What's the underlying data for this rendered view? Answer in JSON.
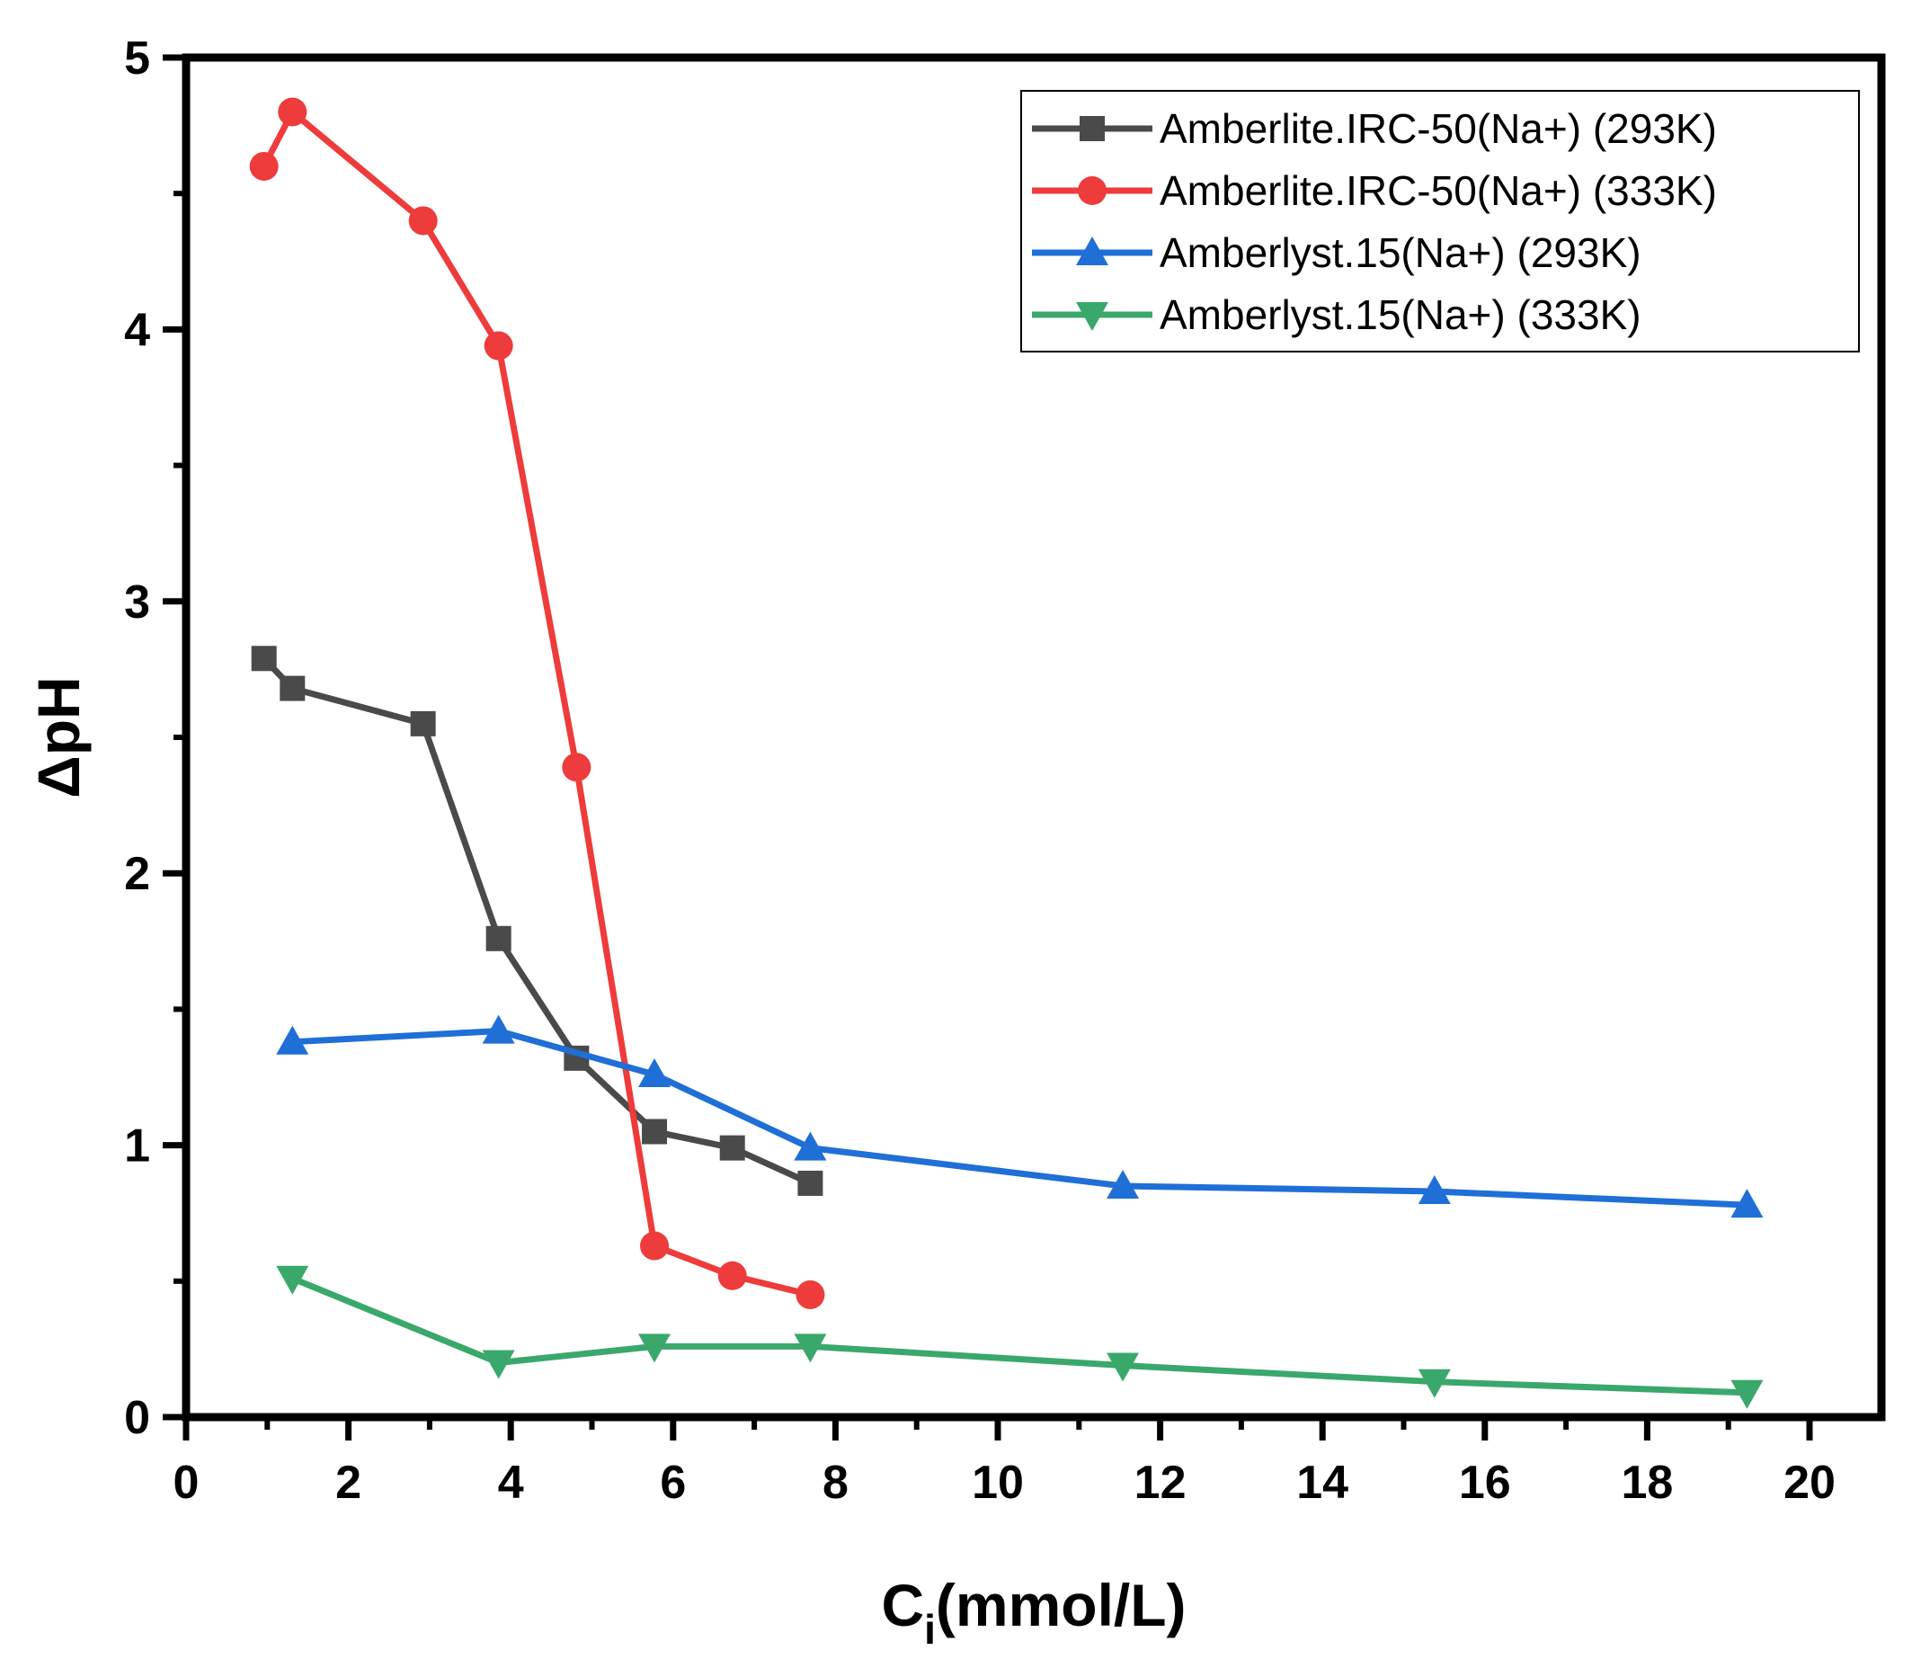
{
  "chart_data": {
    "type": "line",
    "title": "",
    "xlabel_main": "C",
    "xlabel_sub": "i",
    "xlabel_rest": "(mmol/L)",
    "ylabel": "ΔpH",
    "xlim": [
      0,
      21
    ],
    "ylim": [
      0,
      5
    ],
    "xticks": [
      0,
      2,
      4,
      6,
      8,
      10,
      12,
      14,
      16,
      18,
      20
    ],
    "yticks": [
      0,
      1,
      2,
      3,
      4,
      5
    ],
    "grid": false,
    "legend_position": "top-right",
    "series": [
      {
        "name": "Amberlite.IRC-50(Na+) (293K)",
        "color": "#4a4a4a",
        "marker": "square",
        "x": [
          0.96,
          1.31,
          2.92,
          3.85,
          4.81,
          5.77,
          6.73,
          7.69
        ],
        "y": [
          2.79,
          2.68,
          2.55,
          1.76,
          1.32,
          1.05,
          0.99,
          0.86
        ]
      },
      {
        "name": "Amberlite.IRC-50(Na+) (333K)",
        "color": "#ee3b3b",
        "marker": "circle",
        "x": [
          0.96,
          1.31,
          2.92,
          3.85,
          4.81,
          5.77,
          6.73,
          7.69
        ],
        "y": [
          4.6,
          4.8,
          4.4,
          3.94,
          2.39,
          0.63,
          0.52,
          0.45
        ]
      },
      {
        "name": "Amberlyst.15(Na+) (293K)",
        "color": "#1f6fd6",
        "marker": "triangle-up",
        "x": [
          1.31,
          3.85,
          5.77,
          7.69,
          11.54,
          15.38,
          19.23
        ],
        "y": [
          1.38,
          1.42,
          1.26,
          0.99,
          0.85,
          0.83,
          0.78
        ]
      },
      {
        "name": "Amberlyst.15(Na+) (333K)",
        "color": "#3aa86b",
        "marker": "triangle-down",
        "x": [
          1.31,
          3.85,
          5.77,
          7.69,
          11.54,
          15.38,
          19.23
        ],
        "y": [
          0.51,
          0.2,
          0.26,
          0.26,
          0.19,
          0.13,
          0.09
        ]
      }
    ]
  }
}
